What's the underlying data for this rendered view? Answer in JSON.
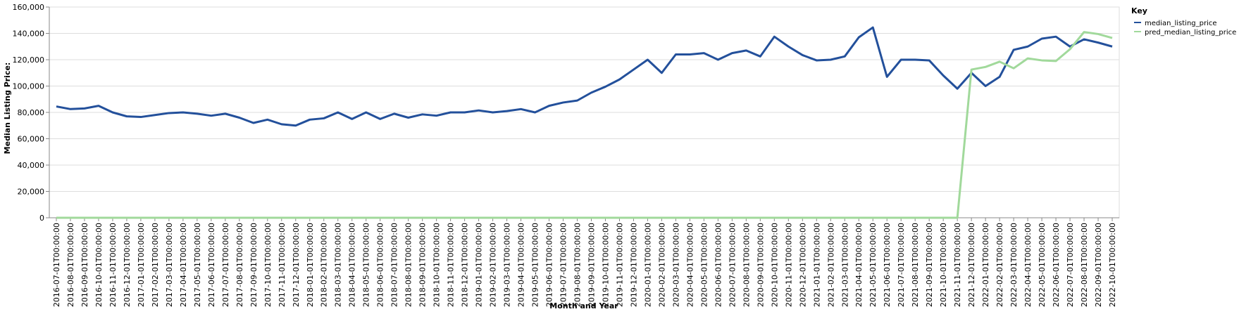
{
  "chart_data": {
    "type": "line",
    "xlabel": "Month and Year",
    "ylabel": "Median Listing Price:",
    "ylim": [
      0,
      160000
    ],
    "yticks": [
      "0",
      "20,000",
      "40,000",
      "60,000",
      "80,000",
      "100,000",
      "120,000",
      "140,000",
      "160,000"
    ],
    "grid": true,
    "legend": {
      "title": "Key",
      "position": "top-right"
    },
    "x": [
      "2016-07-01T00:00:00",
      "2016-08-01T00:00:00",
      "2016-09-01T00:00:00",
      "2016-10-01T00:00:00",
      "2016-11-01T00:00:00",
      "2016-12-01T00:00:00",
      "2017-01-01T00:00:00",
      "2017-02-01T00:00:00",
      "2017-03-01T00:00:00",
      "2017-04-01T00:00:00",
      "2017-05-01T00:00:00",
      "2017-06-01T00:00:00",
      "2017-07-01T00:00:00",
      "2017-08-01T00:00:00",
      "2017-09-01T00:00:00",
      "2017-10-01T00:00:00",
      "2017-11-01T00:00:00",
      "2017-12-01T00:00:00",
      "2018-01-01T00:00:00",
      "2018-02-01T00:00:00",
      "2018-03-01T00:00:00",
      "2018-04-01T00:00:00",
      "2018-05-01T00:00:00",
      "2018-06-01T00:00:00",
      "2018-07-01T00:00:00",
      "2018-08-01T00:00:00",
      "2018-09-01T00:00:00",
      "2018-10-01T00:00:00",
      "2018-11-01T00:00:00",
      "2018-12-01T00:00:00",
      "2019-01-01T00:00:00",
      "2019-02-01T00:00:00",
      "2019-03-01T00:00:00",
      "2019-04-01T00:00:00",
      "2019-05-01T00:00:00",
      "2019-06-01T00:00:00",
      "2019-07-01T00:00:00",
      "2019-08-01T00:00:00",
      "2019-09-01T00:00:00",
      "2019-10-01T00:00:00",
      "2019-11-01T00:00:00",
      "2019-12-01T00:00:00",
      "2020-01-01T00:00:00",
      "2020-02-01T00:00:00",
      "2020-03-01T00:00:00",
      "2020-04-01T00:00:00",
      "2020-05-01T00:00:00",
      "2020-06-01T00:00:00",
      "2020-07-01T00:00:00",
      "2020-08-01T00:00:00",
      "2020-09-01T00:00:00",
      "2020-10-01T00:00:00",
      "2020-11-01T00:00:00",
      "2020-12-01T00:00:00",
      "2021-01-01T00:00:00",
      "2021-02-01T00:00:00",
      "2021-03-01T00:00:00",
      "2021-04-01T00:00:00",
      "2021-05-01T00:00:00",
      "2021-06-01T00:00:00",
      "2021-07-01T00:00:00",
      "2021-08-01T00:00:00",
      "2021-09-01T00:00:00",
      "2021-10-01T00:00:00",
      "2021-11-01T00:00:00",
      "2021-12-01T00:00:00",
      "2022-01-01T00:00:00",
      "2022-02-01T00:00:00",
      "2022-03-01T00:00:00",
      "2022-04-01T00:00:00",
      "2022-05-01T00:00:00",
      "2022-06-01T00:00:00",
      "2022-07-01T00:00:00",
      "2022-08-01T00:00:00",
      "2022-09-01T00:00:00",
      "2022-10-01T00:00:00"
    ],
    "series": [
      {
        "name": "median_listing_price",
        "color": "#23509b",
        "values": [
          84500,
          82500,
          83000,
          85000,
          80000,
          77000,
          76500,
          78000,
          79500,
          80000,
          79000,
          77500,
          79000,
          76000,
          72000,
          74500,
          71000,
          70000,
          74500,
          75500,
          80000,
          75000,
          80000,
          75000,
          79000,
          76000,
          78500,
          77500,
          80000,
          80000,
          81500,
          80000,
          81000,
          82500,
          80000,
          85000,
          87500,
          89000,
          95000,
          99500,
          105000,
          112500,
          120000,
          110000,
          124000,
          124000,
          125000,
          120000,
          125000,
          127000,
          122500,
          137500,
          130000,
          123500,
          119500,
          120000,
          122500,
          137000,
          144500,
          107000,
          120000,
          120000,
          119500,
          108000,
          98000,
          110000,
          100000,
          107000,
          127500,
          130000,
          136000,
          137500,
          130000,
          135500,
          133000,
          130000
        ]
      },
      {
        "name": "pred_median_listing_price",
        "color": "#a1d99b",
        "values": [
          0,
          0,
          0,
          0,
          0,
          0,
          0,
          0,
          0,
          0,
          0,
          0,
          0,
          0,
          0,
          0,
          0,
          0,
          0,
          0,
          0,
          0,
          0,
          0,
          0,
          0,
          0,
          0,
          0,
          0,
          0,
          0,
          0,
          0,
          0,
          0,
          0,
          0,
          0,
          0,
          0,
          0,
          0,
          0,
          0,
          0,
          0,
          0,
          0,
          0,
          0,
          0,
          0,
          0,
          0,
          0,
          0,
          0,
          0,
          0,
          0,
          0,
          0,
          0,
          0,
          112500,
          114500,
          118500,
          113500,
          121000,
          119500,
          119000,
          128000,
          141000,
          139500,
          136500
        ]
      }
    ]
  }
}
